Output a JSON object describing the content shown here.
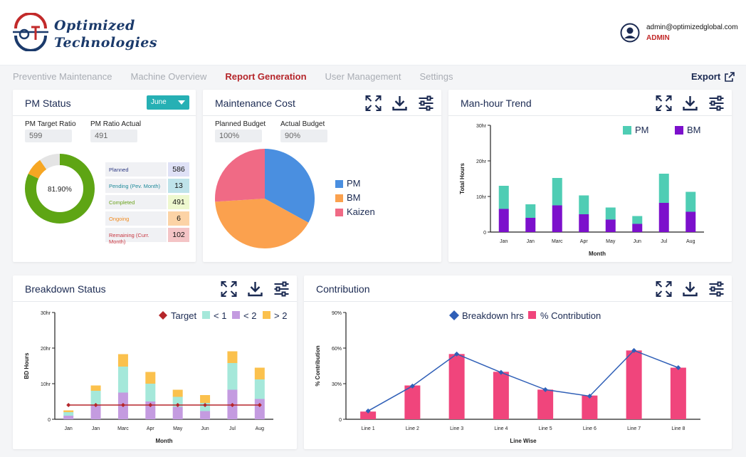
{
  "brand": {
    "line1": "Optimized",
    "line2": "Technologies",
    "logo_letters": "OT"
  },
  "user": {
    "email": "admin@optimizedglobal.com",
    "role": "ADMIN"
  },
  "nav": [
    "Preventive Maintenance",
    "Machine Overview",
    "Report Generation",
    "User Management",
    "Settings"
  ],
  "nav_active": "Report Generation",
  "export_label": "Export",
  "colors": {
    "accent": "#b5262b",
    "teal": "#26b0b4",
    "navy": "#1b2a52",
    "pm": "#4fcdb4",
    "bm": "#7c10cc",
    "pink": "#f0457c",
    "blue": "#2f5fb7"
  },
  "pm_status": {
    "title": "PM Status",
    "month": "June",
    "target_label": "PM Target Ratio",
    "target_value": "599",
    "actual_label": "PM Ratio Actual",
    "actual_value": "491",
    "donut_center": "81.90%",
    "donut": [
      {
        "name": "green",
        "value": 81.9,
        "color": "#5ea514"
      },
      {
        "name": "orange",
        "value": 8.3,
        "color": "#f6a623"
      },
      {
        "name": "gray",
        "value": 9.8,
        "color": "#e4e4e4"
      }
    ],
    "stats": [
      {
        "label": "Planned",
        "value": "586",
        "color": "#2e3a84",
        "bg": "#dfe1f6"
      },
      {
        "label": "Pending (Pev. Month)",
        "value": "13",
        "color": "#1e8a9a",
        "bg": "#bfe3ea"
      },
      {
        "label": "Completed",
        "value": "491",
        "color": "#6aa21b",
        "bg": "#eef8cf"
      },
      {
        "label": "Ongoing",
        "value": "6",
        "color": "#f08a1f",
        "bg": "#fcd3a6"
      },
      {
        "label": "Remaining (Curr. Month)",
        "value": "102",
        "color": "#c8353f",
        "bg": "#f4c4c6"
      }
    ]
  },
  "maintenance_cost": {
    "title": "Maintenance Cost",
    "planned_label": "Planned Budget",
    "planned_value": "100%",
    "actual_label": "Actual Budget",
    "actual_value": "90%",
    "legend": [
      {
        "label": "PM",
        "color": "#4a8fe0"
      },
      {
        "label": "BM",
        "color": "#fba14e"
      },
      {
        "label": "Kaizen",
        "color": "#f06a85"
      }
    ]
  },
  "manhour": {
    "title": "Man-hour Trend"
  },
  "breakdown": {
    "title": "Breakdown Status"
  },
  "contribution": {
    "title": "Contribution"
  },
  "chart_data": [
    {
      "type": "pie",
      "title": "Maintenance Cost",
      "categories": [
        "PM",
        "BM",
        "Kaizen"
      ],
      "values": [
        33,
        41,
        26
      ]
    },
    {
      "type": "bar",
      "title": "Man-hour Trend",
      "xlabel": "Month",
      "ylabel": "Total Hours",
      "categories": [
        "Jan",
        "Jan",
        "Marc",
        "Apr",
        "May",
        "Jun",
        "Jul",
        "Aug"
      ],
      "stacked": true,
      "series": [
        {
          "name": "BM",
          "values": [
            6.5,
            4,
            7.5,
            5,
            3.5,
            2.3,
            8.2,
            5.7
          ]
        },
        {
          "name": "PM",
          "values": [
            6.5,
            3.8,
            7.7,
            5.3,
            3.4,
            2.2,
            8.2,
            5.6
          ]
        }
      ],
      "yticks": [
        "0",
        "10hr",
        "20hr",
        "30hr"
      ],
      "ylim": [
        0,
        30
      ],
      "legend": "top-right"
    },
    {
      "type": "bar",
      "title": "Breakdown Status",
      "xlabel": "Month",
      "ylabel": "BD Hours",
      "categories": [
        "Jan",
        "Jan",
        "Marc",
        "Apr",
        "May",
        "Jun",
        "Jul",
        "Aug"
      ],
      "stacked": true,
      "series": [
        {
          "name": "< 2",
          "values": [
            1,
            4,
            7.5,
            5,
            3.5,
            2.3,
            8.3,
            5.7
          ]
        },
        {
          "name": "< 1",
          "values": [
            1,
            4,
            7.3,
            5,
            2.8,
            2.3,
            7.5,
            5.5
          ]
        },
        {
          "name": "> 2",
          "values": [
            0.5,
            1.5,
            3.5,
            3.3,
            2,
            2.2,
            3.3,
            3.3
          ]
        }
      ],
      "target": {
        "name": "Target",
        "values": [
          4,
          4,
          4,
          4,
          4,
          4,
          4,
          4
        ]
      },
      "legend_order": [
        "Target",
        "< 1",
        "< 2",
        "> 2"
      ],
      "yticks": [
        "0",
        "10hr",
        "20hr",
        "30hr"
      ],
      "ylim": [
        0,
        30
      ]
    },
    {
      "type": "bar",
      "title": "Contribution",
      "xlabel": "Line Wise",
      "ylabel": "% Contribution",
      "categories": [
        "Line 1",
        "Line 2",
        "Line 3",
        "Line 4",
        "Line 5",
        "Line 6",
        "Line 7",
        "Line 8"
      ],
      "series": [
        {
          "name": "% Contribution",
          "values": [
            6.5,
            28.5,
            55,
            40,
            25,
            20,
            58,
            43.5
          ]
        }
      ],
      "line": {
        "name": "Breakdown hrs",
        "values": [
          7,
          28,
          55,
          39.5,
          25,
          19.5,
          58,
          43.5
        ]
      },
      "yticks": [
        "0",
        "30%",
        "60%",
        "90%"
      ],
      "ylim": [
        0,
        90
      ]
    }
  ]
}
